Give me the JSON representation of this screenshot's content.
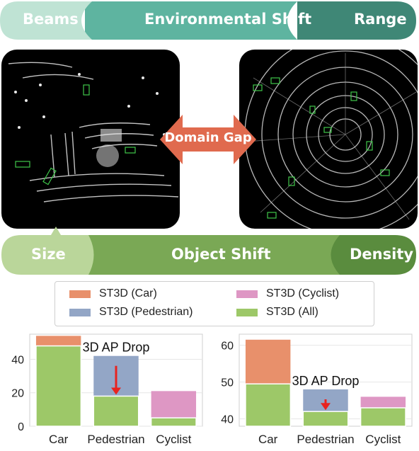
{
  "top_banner": {
    "labels": [
      "Beams",
      "Environmental Shift",
      "Range"
    ],
    "colors": [
      "#bfe3d4",
      "#5eb4a0",
      "#3f8776"
    ]
  },
  "bottom_banner": {
    "labels": [
      "Size",
      "Object Shift",
      "Density"
    ],
    "colors": [
      "#bad69a",
      "#7aa855",
      "#5a8c3e"
    ]
  },
  "domain_gap": {
    "label": "Domain Gap",
    "color": "#e06a4e"
  },
  "legend": {
    "items": [
      {
        "label": "ST3D (Car)",
        "color": "#e8906b"
      },
      {
        "label": "ST3D (Pedestrian)",
        "color": "#93a6c6"
      },
      {
        "label": "ST3D (Cyclist)",
        "color": "#de97c4"
      },
      {
        "label": "ST3D (All)",
        "color": "#9dc868"
      }
    ]
  },
  "chart_data": [
    {
      "type": "bar",
      "categories": [
        "Car",
        "Pedestrian",
        "Cyclist"
      ],
      "series": [
        {
          "name": "ST3D (All)",
          "values": [
            48,
            18,
            5
          ]
        },
        {
          "name": "ST3D (Car)",
          "values": [
            54,
            null,
            null
          ]
        },
        {
          "name": "ST3D (Pedestrian)",
          "values": [
            null,
            42,
            null
          ]
        },
        {
          "name": "ST3D (Cyclist)",
          "values": [
            null,
            null,
            21
          ]
        }
      ],
      "ylim": [
        0,
        55
      ],
      "yticks": [
        0,
        20,
        40
      ],
      "annotation": "3D AP Drop",
      "arrow_color": "#e8231f"
    },
    {
      "type": "bar",
      "categories": [
        "Car",
        "Pedestrian",
        "Cyclist"
      ],
      "series": [
        {
          "name": "ST3D (All)",
          "values": [
            49.5,
            42,
            43
          ]
        },
        {
          "name": "ST3D (Car)",
          "values": [
            61.5,
            null,
            null
          ]
        },
        {
          "name": "ST3D (Pedestrian)",
          "values": [
            null,
            48,
            null
          ]
        },
        {
          "name": "ST3D (Cyclist)",
          "values": [
            null,
            null,
            46
          ]
        }
      ],
      "ylim": [
        38,
        63
      ],
      "yticks": [
        40,
        50,
        60
      ],
      "annotation": "3D AP Drop",
      "arrow_color": "#e8231f"
    }
  ]
}
